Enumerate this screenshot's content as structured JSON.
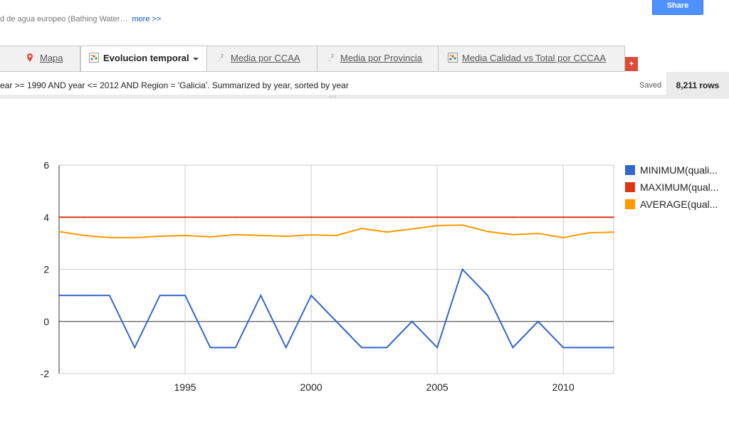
{
  "header": {
    "description": "d de agua europeo (Bathing Water…",
    "more_label": "more >>",
    "share_label": "Share"
  },
  "tabs": [
    {
      "label": "Mapa",
      "icon": "map-pin-icon",
      "active": false
    },
    {
      "label": "Evolucion temporal",
      "icon": "chart-icon",
      "active": true
    },
    {
      "label": "Media por CCAA",
      "icon": "chart-icon",
      "active": false
    },
    {
      "label": "Media por Provincia",
      "icon": "chart-icon",
      "active": false
    },
    {
      "label": "Media Calidad vs Total por CCCAA",
      "icon": "chart-icon",
      "active": false
    }
  ],
  "add_tab_label": "+",
  "filter": {
    "text": "ear >= 1990 AND year <= 2012 AND Region = 'Galicia'. Summarized by year, sorted by year",
    "status": "Saved",
    "rows": "8,211 rows"
  },
  "colors": {
    "accent": "#4d90fe",
    "minimum": "#3366cc",
    "maximum": "#dc3912",
    "average": "#ff9900"
  },
  "chart_data": {
    "type": "line",
    "x": [
      1990,
      1991,
      1992,
      1993,
      1994,
      1995,
      1996,
      1997,
      1998,
      1999,
      2000,
      2001,
      2002,
      2003,
      2004,
      2005,
      2006,
      2007,
      2008,
      2009,
      2010,
      2011,
      2012
    ],
    "series": [
      {
        "name": "MINIMUM(quali...",
        "color": "#3366cc",
        "values": [
          1,
          1,
          1,
          -1,
          1,
          1,
          -1,
          -1,
          1,
          -1,
          1,
          0,
          -1,
          -1,
          0,
          -1,
          2,
          1,
          -1,
          0,
          -1,
          -1,
          -1
        ]
      },
      {
        "name": "MAXIMUM(qual...",
        "color": "#dc3912",
        "values": [
          4,
          4,
          4,
          4,
          4,
          4,
          4,
          4,
          4,
          4,
          4,
          4,
          4,
          4,
          4,
          4,
          4,
          4,
          4,
          4,
          4,
          4,
          4
        ]
      },
      {
        "name": "AVERAGE(qual...",
        "color": "#ff9900",
        "values": [
          3.45,
          3.3,
          3.22,
          3.22,
          3.27,
          3.3,
          3.25,
          3.33,
          3.3,
          3.27,
          3.32,
          3.3,
          3.57,
          3.43,
          3.55,
          3.68,
          3.7,
          3.45,
          3.33,
          3.38,
          3.22,
          3.4,
          3.43
        ]
      }
    ],
    "xticks": [
      1995,
      2000,
      2005,
      2010
    ],
    "yticks": [
      -2,
      0,
      2,
      4,
      6
    ],
    "xlim": [
      1990,
      2012
    ],
    "ylim": [
      -2,
      6
    ],
    "grid": true,
    "legend": "right"
  }
}
